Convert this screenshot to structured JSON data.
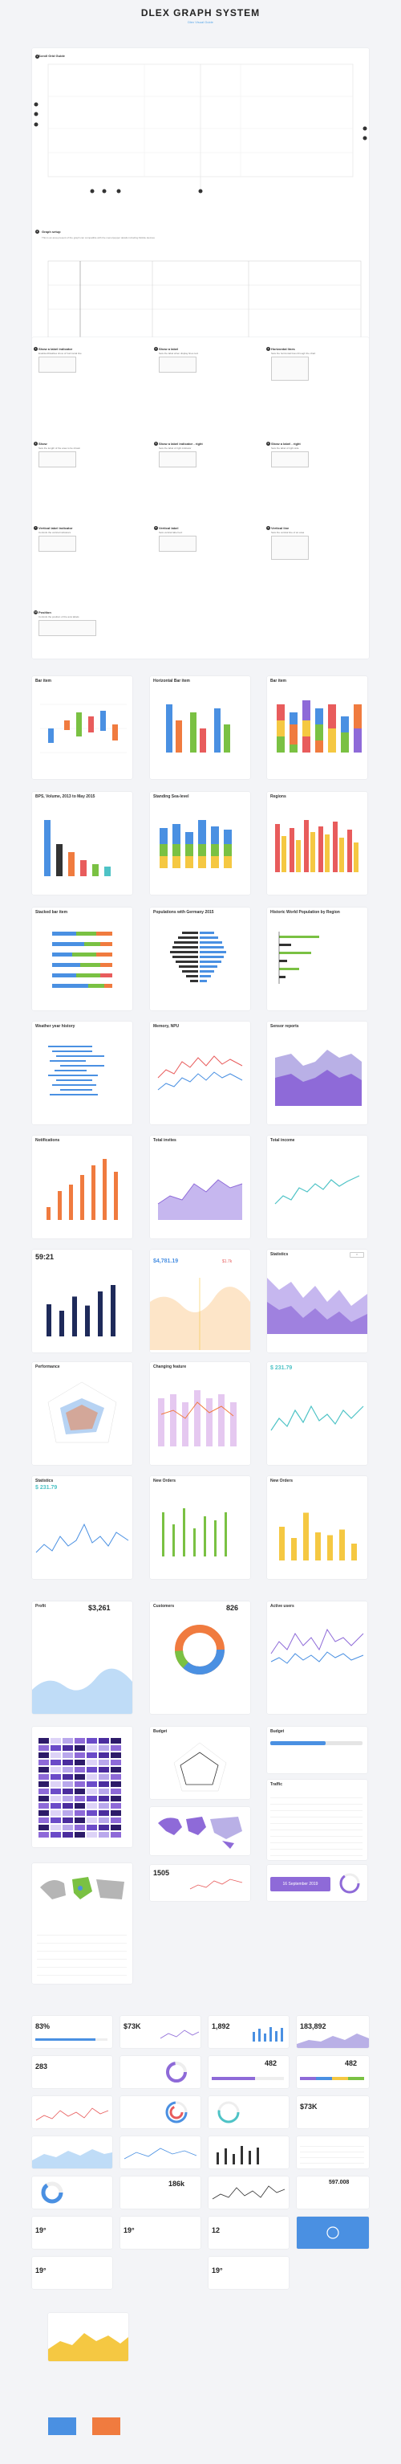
{
  "header": {
    "title": "DLEX GRAPH SYSTEM",
    "subtitle": "Dlex Visual Guide"
  },
  "guide": {
    "grid_title": "Scroll Grid Guide",
    "graph_title": "Graph setup",
    "graph_desc": "This is an area present of the graph can compatible with the menu/popper details including Mobile devices",
    "numbers": [
      "1",
      "2",
      "3",
      "4",
      "5",
      "6",
      "7",
      "8"
    ]
  },
  "docs": [
    {
      "label": "Show a label indicator",
      "desc": "Enables/Disables show of horizontal line"
    },
    {
      "label": "Show a label",
      "desc": "Sets the label when display lines text"
    },
    {
      "label": "Horizontal lines",
      "desc": "Sets the horizontal lines through the chart"
    },
    {
      "label": "Show",
      "desc": "Sets the length of the area to be shown"
    },
    {
      "label": "Show a label indicator - right",
      "desc": "Sets the label of right indicator"
    },
    {
      "label": "Show a label - right",
      "desc": "Sets the label of right side"
    },
    {
      "label": "Vertical label indicator",
      "desc": "Controls the vertical indicators"
    },
    {
      "label": "Vertical label",
      "desc": "Sets vertical label text"
    },
    {
      "label": "Vertical line",
      "desc": "Sets the vertical line of an area"
    },
    {
      "label": "Position",
      "desc": "Controls the position of the axis labels"
    }
  ],
  "cards": {
    "bar_item": "Bar item",
    "horizontal_bar_item": "Horizontal Bar item",
    "bar_item2": "Bar item",
    "bps_volume": "BPS, Volume, 2013 to May 2015",
    "sea_level": "Standing Sea-level",
    "regions": "Regions",
    "stacked_bar": "Stacked bar item",
    "population": "Populations with Germany 2015",
    "historic": "Historic World Population by Region",
    "weather": "Weather year history",
    "memory": "Memory, NPU",
    "sensor": "Sensor reports",
    "notifications": "Notifications",
    "total_invites": "Total invites",
    "total_income": "Total income",
    "time_val": "59:21",
    "money1": "$4,781.19",
    "money1_delta": "$1.7k",
    "statistics": "Statistics",
    "performance": "Performance",
    "changing_feature": "Changing feature",
    "money2": "$ 231.79",
    "money3": "$ 231.79",
    "new_orders": "New Orders",
    "new_orders2": "New Orders",
    "profit": "Profit",
    "profit_val": "$3,261",
    "customers": "Customers",
    "customers_val": "826",
    "active_users": "Active users",
    "budget": "Budget",
    "traffic": "Traffic",
    "sales_label": "Sales",
    "big_num": "1505",
    "date_val": "16 September 2019",
    "pct_a": "83%",
    "val_73k": "$73K",
    "val_1892": "1,892",
    "val_183892": "183,892",
    "val_283": "283",
    "val_482": "482",
    "val_73k2": "$73K",
    "val_186k": "186k",
    "val_597": "597.008",
    "val_12": "12",
    "temp1": "19°",
    "temp2": "19°",
    "temp3": "19°",
    "temp4": "19°"
  },
  "chart_data": [
    {
      "type": "bar",
      "title": "Notifications",
      "values": [
        20,
        45,
        55,
        70,
        85,
        95,
        75
      ]
    },
    {
      "type": "bar",
      "title": "Statistics",
      "values": [
        50,
        40,
        62,
        48,
        70,
        80
      ]
    },
    {
      "type": "bar",
      "title": "New Orders",
      "values": [
        60,
        40,
        85,
        50,
        45,
        55,
        30
      ]
    }
  ],
  "colors": {
    "blue": "#4a90e2",
    "orange": "#f07b3f",
    "green": "#7ac143",
    "purple": "#8e6ad8",
    "yellow": "#f5c842",
    "red": "#e85c5c",
    "dark": "#1e2a5a",
    "teal": "#4ec3c6"
  },
  "icons": [
    "search-icon",
    "gear-icon"
  ]
}
